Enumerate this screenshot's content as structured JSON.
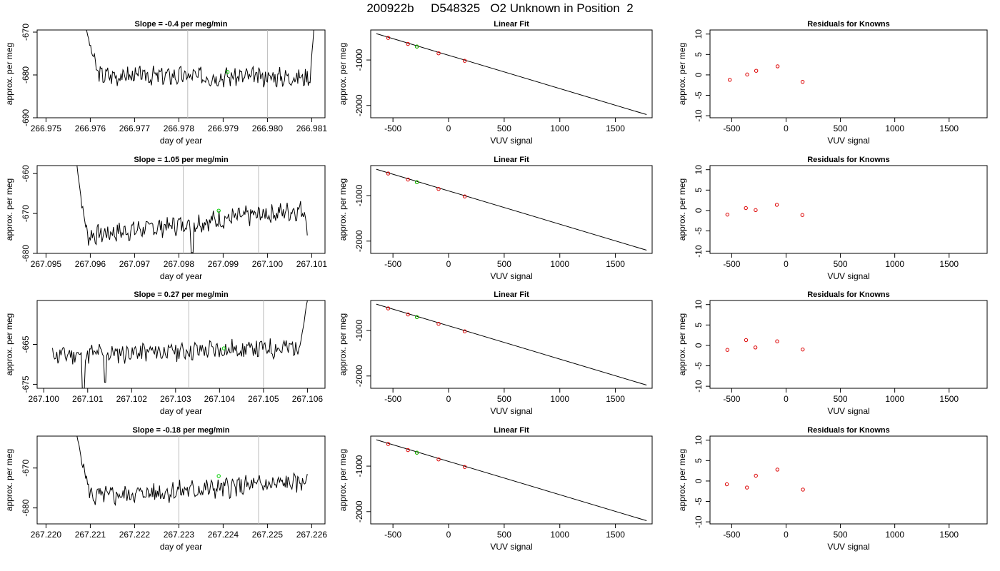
{
  "figure": {
    "title": "200922b     D548325   O2 Unknown in Position  2",
    "colors": {
      "line": "#000000",
      "known_point": "#dd0000",
      "unknown_point": "#00cc00",
      "vline": "#bbbbbb"
    }
  },
  "chart_data": [
    {
      "type": "line",
      "title": "Slope =  -0.4  per meg/min",
      "xlabel": "day of year",
      "ylabel": "approx. per meg",
      "xlim": [
        266.9748,
        266.9813
      ],
      "ylim": [
        -690,
        -669.5
      ],
      "y_reversed": true,
      "xticks": [
        266.975,
        266.976,
        266.977,
        266.978,
        266.979,
        266.98,
        266.981
      ],
      "xtick_labels": [
        "266.975",
        "266.976",
        "266.977",
        "266.978",
        "266.979",
        "266.980",
        "266.981"
      ],
      "yticks": [
        -670,
        -680,
        -690
      ],
      "ytick_labels": [
        "-670",
        "-680",
        "-690"
      ],
      "vlines": [
        266.9782,
        266.98
      ],
      "line": {
        "x_start": 266.9759,
        "x_end": 266.98105,
        "base": -680.3,
        "trend": -0.5,
        "amp": 1.9,
        "seed": 3,
        "start": -669,
        "start_len": 0.00032,
        "end": -669,
        "end_len": 0.0001,
        "dips": []
      },
      "unknown_point": {
        "x": 266.9791,
        "y": -679.3
      }
    },
    {
      "type": "scatter",
      "title": "Linear Fit",
      "xlabel": "VUV signal",
      "ylabel": "approx. per meg",
      "xlim": [
        -700,
        1830
      ],
      "ylim": [
        -2270,
        -340
      ],
      "y_reversed": true,
      "xticks": [
        -500,
        0,
        500,
        1000,
        1500
      ],
      "xtick_labels": [
        "-500",
        "0",
        "500",
        "1000",
        "1500"
      ],
      "yticks": [
        -1000,
        -2000
      ],
      "ytick_labels": [
        "-1000",
        "-2000"
      ],
      "fit_line": {
        "x": [
          -650,
          1780
        ],
        "y": [
          -420,
          -2200
        ]
      },
      "points": {
        "x": [
          -543,
          -365,
          -285,
          -90,
          145
        ],
        "y": [
          -514,
          -647,
          -705,
          -853,
          -1018
        ]
      },
      "unknown_point": {
        "x": -285,
        "y": -705
      }
    },
    {
      "type": "scatter",
      "title": "Residuals for Knowns",
      "xlabel": "VUV signal",
      "ylabel": "approx. per meg",
      "xlim": [
        -700,
        1850
      ],
      "ylim": [
        -10.5,
        11
      ],
      "y_reversed": false,
      "xticks": [
        -500,
        0,
        500,
        1000,
        1500
      ],
      "xtick_labels": [
        "-500",
        "0",
        "500",
        "1000",
        "1500"
      ],
      "yticks": [
        -10,
        -5,
        0,
        5,
        10
      ],
      "ytick_labels": [
        "-10",
        "-5",
        "0",
        "5",
        "10"
      ],
      "points": {
        "x": [
          -518,
          -358,
          -275,
          -78,
          152
        ],
        "y": [
          -1.2,
          0.1,
          1.0,
          2.1,
          -1.7
        ]
      }
    },
    {
      "type": "line",
      "title": "Slope =  1.05  per meg/min",
      "xlabel": "day of year",
      "ylabel": "approx. per meg",
      "xlim": [
        267.0948,
        267.1013
      ],
      "ylim": [
        -680,
        -658
      ],
      "y_reversed": true,
      "xticks": [
        267.095,
        267.096,
        267.097,
        267.098,
        267.099,
        267.1,
        267.101
      ],
      "xtick_labels": [
        "267.095",
        "267.096",
        "267.097",
        "267.098",
        "267.099",
        "267.100",
        "267.101"
      ],
      "yticks": [
        -660,
        -670,
        -680
      ],
      "ytick_labels": [
        "-660",
        "-670",
        "-680"
      ],
      "vlines": [
        267.0981,
        267.0998
      ],
      "line": {
        "x_start": 267.0957,
        "x_end": 267.1009,
        "base": -672.4,
        "trend": 7.0,
        "amp": 2.1,
        "seed": 7,
        "start": -658,
        "start_len": 0.00025,
        "end": -675.5,
        "end_len": 5e-05,
        "dips": [
          [
            267.0983,
            -679.8
          ]
        ]
      },
      "unknown_point": {
        "x": 267.0989,
        "y": -669.3
      }
    },
    {
      "type": "scatter",
      "title": "Linear Fit",
      "xlabel": "VUV signal",
      "ylabel": "approx. per meg",
      "xlim": [
        -700,
        1830
      ],
      "ylim": [
        -2270,
        -340
      ],
      "y_reversed": true,
      "xticks": [
        -500,
        0,
        500,
        1000,
        1500
      ],
      "xtick_labels": [
        "-500",
        "0",
        "500",
        "1000",
        "1500"
      ],
      "yticks": [
        -1000,
        -2000
      ],
      "ytick_labels": [
        "-1000",
        "-2000"
      ],
      "fit_line": {
        "x": [
          -650,
          1780
        ],
        "y": [
          -420,
          -2200
        ]
      },
      "points": {
        "x": [
          -543,
          -365,
          -285,
          -90,
          145
        ],
        "y": [
          -514,
          -647,
          -705,
          -853,
          -1018
        ]
      },
      "unknown_point": {
        "x": -285,
        "y": -705
      }
    },
    {
      "type": "scatter",
      "title": "Residuals for Knowns",
      "xlabel": "VUV signal",
      "ylabel": "approx. per meg",
      "xlim": [
        -700,
        1850
      ],
      "ylim": [
        -10.5,
        11
      ],
      "y_reversed": false,
      "xticks": [
        -500,
        0,
        500,
        1000,
        1500
      ],
      "xtick_labels": [
        "-500",
        "0",
        "500",
        "1000",
        "1500"
      ],
      "yticks": [
        -10,
        -5,
        0,
        5,
        10
      ],
      "ytick_labels": [
        "-10",
        "-5",
        "0",
        "5",
        "10"
      ],
      "points": {
        "x": [
          -540,
          -370,
          -280,
          -85,
          150
        ],
        "y": [
          -1.0,
          0.6,
          0.1,
          1.4,
          -1.1
        ]
      }
    },
    {
      "type": "line",
      "title": "Slope =  0.27  per meg/min",
      "xlabel": "day of year",
      "ylabel": "approx. per meg",
      "xlim": [
        267.09985,
        267.1064
      ],
      "ylim": [
        -676,
        -654
      ],
      "y_reversed": true,
      "xticks": [
        267.1,
        267.101,
        267.102,
        267.103,
        267.104,
        267.105,
        267.106
      ],
      "xtick_labels": [
        "267.100",
        "267.101",
        "267.102",
        "267.103",
        "267.104",
        "267.105",
        "267.106"
      ],
      "yticks": [
        -665,
        -675
      ],
      "ytick_labels": [
        "-665",
        "-675"
      ],
      "vlines": [
        267.1033,
        267.105
      ],
      "line": {
        "x_start": 267.1002,
        "x_end": 267.106,
        "base": -666.7,
        "trend": 2.0,
        "amp": 2.2,
        "seed": 11,
        "start": null,
        "start_len": 0,
        "end": -654,
        "end_len": 0.00022,
        "dips": [
          [
            267.1009,
            -676
          ],
          [
            267.1014,
            -674.5
          ]
        ]
      },
      "unknown_point": {
        "x": 267.1041,
        "y": -666
      }
    },
    {
      "type": "scatter",
      "title": "Linear Fit",
      "xlabel": "VUV signal",
      "ylabel": "approx. per meg",
      "xlim": [
        -700,
        1830
      ],
      "ylim": [
        -2270,
        -340
      ],
      "y_reversed": true,
      "xticks": [
        -500,
        0,
        500,
        1000,
        1500
      ],
      "xtick_labels": [
        "-500",
        "0",
        "500",
        "1000",
        "1500"
      ],
      "yticks": [
        -1000,
        -2000
      ],
      "ytick_labels": [
        "-1000",
        "-2000"
      ],
      "fit_line": {
        "x": [
          -650,
          1780
        ],
        "y": [
          -420,
          -2200
        ]
      },
      "points": {
        "x": [
          -543,
          -365,
          -285,
          -90,
          145
        ],
        "y": [
          -514,
          -647,
          -705,
          -853,
          -1018
        ]
      },
      "unknown_point": {
        "x": -285,
        "y": -705
      }
    },
    {
      "type": "scatter",
      "title": "Residuals for Knowns",
      "xlabel": "VUV signal",
      "ylabel": "approx. per meg",
      "xlim": [
        -700,
        1850
      ],
      "ylim": [
        -10.5,
        11
      ],
      "y_reversed": false,
      "xticks": [
        -500,
        0,
        500,
        1000,
        1500
      ],
      "xtick_labels": [
        "-500",
        "0",
        "500",
        "1000",
        "1500"
      ],
      "yticks": [
        -10,
        -5,
        0,
        5,
        10
      ],
      "ytick_labels": [
        "-10",
        "-5",
        "0",
        "5",
        "10"
      ],
      "points": {
        "x": [
          -540,
          -368,
          -282,
          -82,
          153
        ],
        "y": [
          -1.1,
          1.3,
          -0.5,
          1.0,
          -1.0
        ]
      }
    },
    {
      "type": "line",
      "title": "Slope =  -0.18  per meg/min",
      "xlabel": "day of year",
      "ylabel": "approx. per meg",
      "xlim": [
        267.2198,
        267.2263
      ],
      "ylim": [
        -684,
        -662
      ],
      "y_reversed": true,
      "xticks": [
        267.22,
        267.221,
        267.222,
        267.223,
        267.224,
        267.225,
        267.226
      ],
      "xtick_labels": [
        "267.220",
        "267.221",
        "267.222",
        "267.223",
        "267.224",
        "267.225",
        "267.226"
      ],
      "yticks": [
        -670,
        -680
      ],
      "ytick_labels": [
        "-670",
        "-680"
      ],
      "vlines": [
        267.223,
        267.2248
      ],
      "line": {
        "x_start": 267.2207,
        "x_end": 267.2259,
        "base": -675.5,
        "trend": 4.0,
        "amp": 2.2,
        "seed": 5,
        "start": -662,
        "start_len": 0.00035,
        "end": -671.5,
        "end_len": 5e-05,
        "dips": []
      },
      "unknown_point": {
        "x": 267.2239,
        "y": -672
      }
    },
    {
      "type": "scatter",
      "title": "Linear Fit",
      "xlabel": "VUV signal",
      "ylabel": "approx. per meg",
      "xlim": [
        -700,
        1830
      ],
      "ylim": [
        -2270,
        -340
      ],
      "y_reversed": true,
      "xticks": [
        -500,
        0,
        500,
        1000,
        1500
      ],
      "xtick_labels": [
        "-500",
        "0",
        "500",
        "1000",
        "1500"
      ],
      "yticks": [
        -1000,
        -2000
      ],
      "ytick_labels": [
        "-1000",
        "-2000"
      ],
      "fit_line": {
        "x": [
          -650,
          1780
        ],
        "y": [
          -420,
          -2200
        ]
      },
      "points": {
        "x": [
          -543,
          -365,
          -285,
          -90,
          145
        ],
        "y": [
          -514,
          -647,
          -705,
          -853,
          -1018
        ]
      },
      "unknown_point": {
        "x": -285,
        "y": -705
      }
    },
    {
      "type": "scatter",
      "title": "Residuals for Knowns",
      "xlabel": "VUV signal",
      "ylabel": "approx. per meg",
      "xlim": [
        -700,
        1850
      ],
      "ylim": [
        -10.5,
        11
      ],
      "y_reversed": false,
      "xticks": [
        -500,
        0,
        500,
        1000,
        1500
      ],
      "xtick_labels": [
        "-500",
        "0",
        "500",
        "1000",
        "1500"
      ],
      "yticks": [
        -10,
        -5,
        0,
        5,
        10
      ],
      "ytick_labels": [
        "-10",
        "-5",
        "0",
        "5",
        "10"
      ],
      "points": {
        "x": [
          -545,
          -360,
          -278,
          -80,
          155
        ],
        "y": [
          -0.8,
          -1.6,
          1.3,
          2.8,
          -2.1
        ]
      }
    }
  ]
}
